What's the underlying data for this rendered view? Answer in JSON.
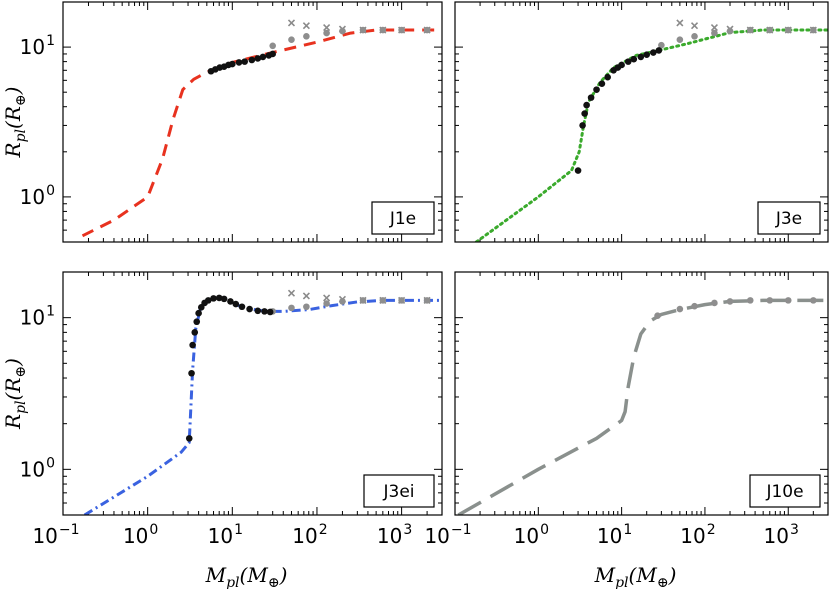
{
  "chart_data": {
    "type": "line",
    "scale": "log-log",
    "xlabel": {
      "main": "M",
      "sub": "pl",
      "unit": "(M",
      "unit_sub": "⊕",
      "close": ")"
    },
    "ylabel": {
      "main": "R",
      "sub": "pl",
      "unit": "(R",
      "unit_sub": "⊕",
      "close": ")"
    },
    "xlim": [
      0.1,
      3000
    ],
    "ylim": [
      0.5,
      20
    ],
    "x_ticks": [
      {
        "base": "10",
        "exp": "−1",
        "value": 0.1
      },
      {
        "base": "10",
        "exp": "0",
        "value": 1
      },
      {
        "base": "10",
        "exp": "1",
        "value": 10
      },
      {
        "base": "10",
        "exp": "2",
        "value": 100
      },
      {
        "base": "10",
        "exp": "3",
        "value": 1000
      }
    ],
    "y_ticks": [
      {
        "base": "10",
        "exp": "0",
        "value": 1
      },
      {
        "base": "10",
        "exp": "1",
        "value": 10
      }
    ],
    "panels": [
      {
        "id": "j1e",
        "legend": "J1e",
        "line_color": "#e8321f",
        "line_style": "dash",
        "curve": [
          [
            0.17,
            0.55
          ],
          [
            0.4,
            0.7
          ],
          [
            1.0,
            1.0
          ],
          [
            1.5,
            1.8
          ],
          [
            2.0,
            3.3
          ],
          [
            2.6,
            5.2
          ],
          [
            3.5,
            6.1
          ],
          [
            5,
            6.8
          ],
          [
            10,
            7.9
          ],
          [
            30,
            9.2
          ],
          [
            100,
            10.8
          ],
          [
            250,
            12.4
          ],
          [
            500,
            13.0
          ],
          [
            3000,
            13.0
          ]
        ],
        "black_points": [
          [
            5.6,
            6.9
          ],
          [
            6.3,
            7.1
          ],
          [
            7.1,
            7.3
          ],
          [
            8,
            7.4
          ],
          [
            9,
            7.6
          ],
          [
            10,
            7.7
          ],
          [
            12,
            7.9
          ],
          [
            14,
            8.0
          ],
          [
            17,
            8.2
          ],
          [
            20,
            8.4
          ],
          [
            23,
            8.6
          ],
          [
            27,
            8.8
          ],
          [
            30,
            9.0
          ]
        ],
        "gray_points": [
          [
            30,
            10.2
          ],
          [
            50,
            11.2
          ],
          [
            75,
            11.8
          ],
          [
            130,
            12.4
          ],
          [
            200,
            12.8
          ],
          [
            350,
            13.0
          ],
          [
            600,
            13.0
          ],
          [
            1000,
            13.0
          ],
          [
            2000,
            13.0
          ]
        ],
        "crosses": [
          [
            50,
            14.5
          ],
          [
            75,
            13.9
          ],
          [
            130,
            13.5
          ],
          [
            200,
            13.2
          ],
          [
            350,
            13.0
          ],
          [
            600,
            13.0
          ],
          [
            1000,
            13.0
          ],
          [
            2000,
            13.0
          ]
        ]
      },
      {
        "id": "j3e",
        "legend": "J3e",
        "line_color": "#3aaa2c",
        "line_style": "dot",
        "curve": [
          [
            0.18,
            0.5
          ],
          [
            1.0,
            1.0
          ],
          [
            2.5,
            1.5
          ],
          [
            3.1,
            2.0
          ],
          [
            3.5,
            3.0
          ],
          [
            4.0,
            4.3
          ],
          [
            5.5,
            5.8
          ],
          [
            8,
            7.3
          ],
          [
            15,
            8.8
          ],
          [
            30,
            9.6
          ],
          [
            60,
            10.5
          ],
          [
            100,
            11.3
          ],
          [
            200,
            12.5
          ],
          [
            500,
            13.0
          ],
          [
            3000,
            13.0
          ]
        ],
        "black_points": [
          [
            3.0,
            1.5
          ],
          [
            3.4,
            3.0
          ],
          [
            3.6,
            3.6
          ],
          [
            3.8,
            4.1
          ],
          [
            4.3,
            4.6
          ],
          [
            5.0,
            5.2
          ],
          [
            5.8,
            5.7
          ],
          [
            6.8,
            6.3
          ],
          [
            8,
            7.0
          ],
          [
            9,
            7.3
          ],
          [
            10,
            7.6
          ],
          [
            12,
            8.0
          ],
          [
            14,
            8.3
          ],
          [
            17,
            8.6
          ],
          [
            20,
            8.9
          ],
          [
            24,
            9.2
          ],
          [
            28,
            9.5
          ]
        ],
        "gray_points": [
          [
            30,
            10.3
          ],
          [
            50,
            11.2
          ],
          [
            75,
            11.8
          ],
          [
            130,
            12.4
          ],
          [
            200,
            12.8
          ],
          [
            350,
            13.0
          ],
          [
            600,
            13.0
          ],
          [
            1000,
            13.0
          ],
          [
            2000,
            13.0
          ]
        ],
        "crosses": [
          [
            50,
            14.5
          ],
          [
            75,
            13.9
          ],
          [
            130,
            13.5
          ],
          [
            200,
            13.2
          ],
          [
            350,
            13.0
          ],
          [
            600,
            13.0
          ],
          [
            1000,
            13.0
          ],
          [
            2000,
            13.0
          ]
        ]
      },
      {
        "id": "j3ei",
        "legend": "J3ei",
        "line_color": "#3a62e0",
        "line_style": "dashdot",
        "curve": [
          [
            0.18,
            0.5
          ],
          [
            1.0,
            0.9
          ],
          [
            2.5,
            1.3
          ],
          [
            3.1,
            1.5
          ],
          [
            3.4,
            4.5
          ],
          [
            3.7,
            8.5
          ],
          [
            4.2,
            11.5
          ],
          [
            5,
            13.1
          ],
          [
            6.5,
            13.6
          ],
          [
            8,
            13.4
          ],
          [
            11,
            12.2
          ],
          [
            15,
            11.5
          ],
          [
            25,
            11.0
          ],
          [
            40,
            11.0
          ],
          [
            80,
            11.3
          ],
          [
            150,
            12.0
          ],
          [
            300,
            12.7
          ],
          [
            600,
            13.0
          ],
          [
            3000,
            13.0
          ]
        ],
        "black_points": [
          [
            3.1,
            1.6
          ],
          [
            3.3,
            4.3
          ],
          [
            3.4,
            6.6
          ],
          [
            3.6,
            8.0
          ],
          [
            3.8,
            9.4
          ],
          [
            4.0,
            10.7
          ],
          [
            4.3,
            11.7
          ],
          [
            4.7,
            12.5
          ],
          [
            5.2,
            13.0
          ],
          [
            6.0,
            13.4
          ],
          [
            7.0,
            13.5
          ],
          [
            8.0,
            13.3
          ],
          [
            9.5,
            12.8
          ],
          [
            11,
            12.3
          ],
          [
            13,
            11.8
          ],
          [
            16,
            11.4
          ],
          [
            20,
            11.1
          ],
          [
            24,
            11.0
          ],
          [
            28,
            10.9
          ]
        ],
        "gray_points": [
          [
            30,
            11.0
          ],
          [
            50,
            11.6
          ],
          [
            75,
            11.8
          ],
          [
            130,
            12.4
          ],
          [
            200,
            12.8
          ],
          [
            350,
            13.0
          ],
          [
            600,
            13.0
          ],
          [
            1000,
            13.0
          ],
          [
            2000,
            13.0
          ]
        ],
        "crosses": [
          [
            50,
            14.5
          ],
          [
            75,
            13.9
          ],
          [
            130,
            13.5
          ],
          [
            200,
            13.2
          ],
          [
            350,
            13.0
          ],
          [
            600,
            13.0
          ],
          [
            1000,
            13.0
          ],
          [
            2000,
            13.0
          ]
        ]
      },
      {
        "id": "j10e",
        "legend": "J10e",
        "line_color": "#8a908d",
        "line_style": "longdash",
        "curve": [
          [
            0.11,
            0.5
          ],
          [
            1,
            1.0
          ],
          [
            5,
            1.6
          ],
          [
            10,
            2.1
          ],
          [
            11,
            2.4
          ],
          [
            12,
            3.5
          ],
          [
            14,
            5.5
          ],
          [
            17,
            7.8
          ],
          [
            22,
            9.5
          ],
          [
            30,
            10.5
          ],
          [
            50,
            11.3
          ],
          [
            100,
            12.2
          ],
          [
            200,
            12.8
          ],
          [
            500,
            13.0
          ],
          [
            3000,
            13.0
          ]
        ],
        "black_points": [],
        "gray_points": [
          [
            27,
            10.3
          ],
          [
            50,
            11.4
          ],
          [
            75,
            11.9
          ],
          [
            130,
            12.5
          ],
          [
            200,
            12.8
          ],
          [
            350,
            13.0
          ],
          [
            600,
            13.0
          ],
          [
            1000,
            13.0
          ],
          [
            2000,
            13.0
          ]
        ],
        "crosses": []
      }
    ]
  }
}
